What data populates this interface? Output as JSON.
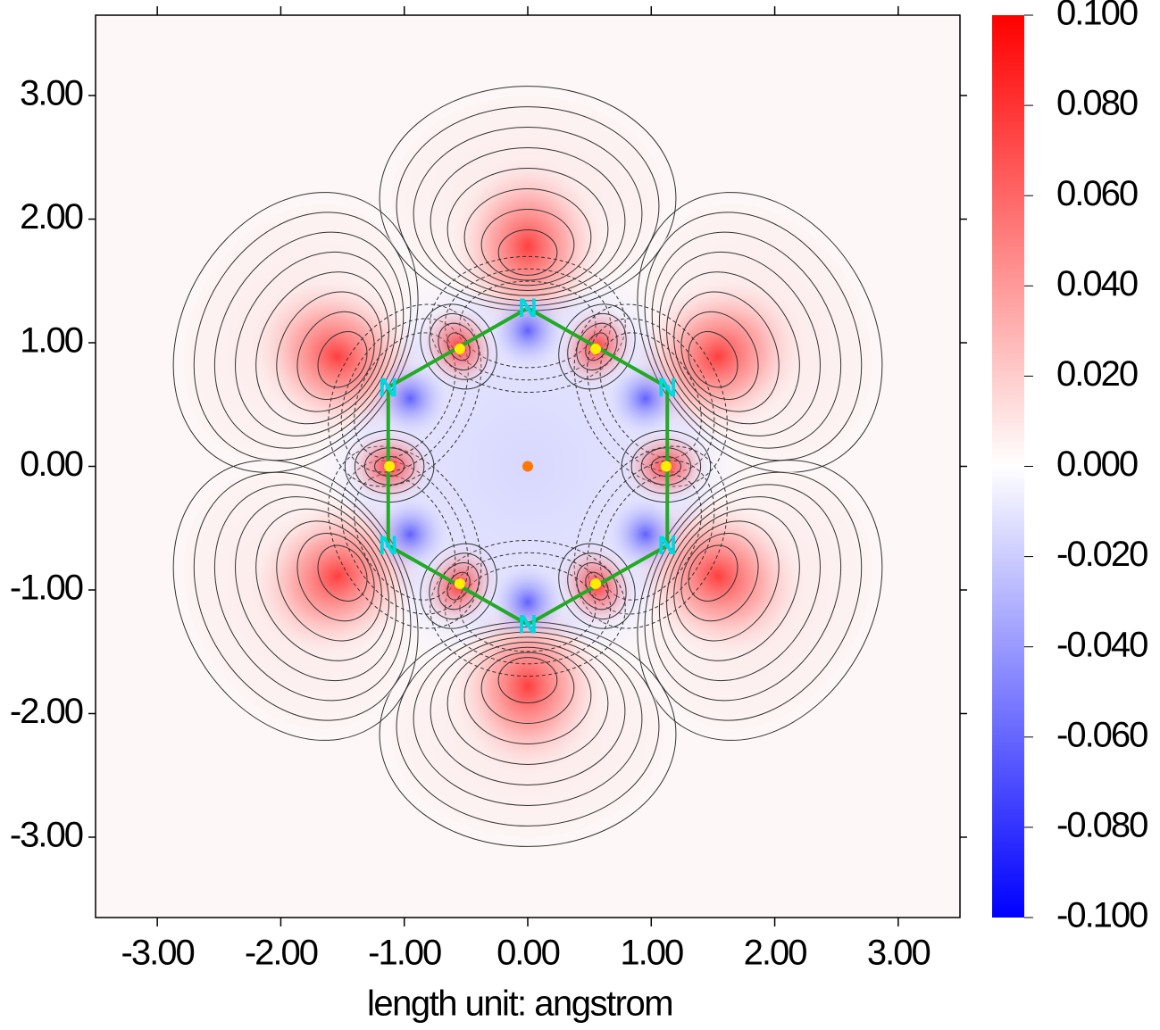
{
  "chart_data": {
    "type": "contour",
    "xlabel": "length unit: angstrom",
    "xlim": [
      -3.5,
      3.5
    ],
    "ylim": [
      -3.65,
      3.65
    ],
    "xticks": [
      {
        "value": -3,
        "label": "-3.00"
      },
      {
        "value": -2,
        "label": "-2.00"
      },
      {
        "value": -1,
        "label": "-1.00"
      },
      {
        "value": 0,
        "label": "0.00"
      },
      {
        "value": 1,
        "label": "1.00"
      },
      {
        "value": 2,
        "label": "2.00"
      },
      {
        "value": 3,
        "label": "3.00"
      }
    ],
    "yticks": [
      {
        "value": 3,
        "label": "3.00"
      },
      {
        "value": 2,
        "label": "2.00"
      },
      {
        "value": 1,
        "label": "1.00"
      },
      {
        "value": 0,
        "label": "0.00"
      },
      {
        "value": -1,
        "label": "-1.00"
      },
      {
        "value": -2,
        "label": "-2.00"
      },
      {
        "value": -3,
        "label": "-3.00"
      }
    ],
    "colorbar": {
      "lim": [
        -0.1,
        0.1
      ],
      "colors": [
        "#0000ff",
        "#ffffff",
        "#ff0000"
      ],
      "ticks": [
        {
          "value": 0.1,
          "label": "0.100"
        },
        {
          "value": 0.08,
          "label": "0.080"
        },
        {
          "value": 0.06,
          "label": "0.060"
        },
        {
          "value": 0.04,
          "label": "0.040"
        },
        {
          "value": 0.02,
          "label": "0.020"
        },
        {
          "value": 0,
          "label": "0.000"
        },
        {
          "value": -0.02,
          "label": "-0.020"
        },
        {
          "value": -0.04,
          "label": "-0.040"
        },
        {
          "value": -0.06,
          "label": "-0.060"
        },
        {
          "value": -0.08,
          "label": "-0.080"
        },
        {
          "value": -0.1,
          "label": "-0.100"
        }
      ]
    },
    "atoms": [
      {
        "label": "N",
        "x": 0,
        "y": 1.28
      },
      {
        "label": "N",
        "x": 1.13,
        "y": 0.64
      },
      {
        "label": "N",
        "x": 1.13,
        "y": -0.64
      },
      {
        "label": "N",
        "x": 0,
        "y": -1.28
      },
      {
        "label": "N",
        "x": -1.13,
        "y": -0.64
      },
      {
        "label": "N",
        "x": -1.13,
        "y": 0.64
      }
    ],
    "bond_color": "#22aa22",
    "atom_label_color": "#00d8e0",
    "critical_points": [
      {
        "x": 0.55,
        "y": 0.95,
        "color": "#ffee00"
      },
      {
        "x": 1.12,
        "y": 0,
        "color": "#ffee00"
      },
      {
        "x": 0.55,
        "y": -0.95,
        "color": "#ffee00"
      },
      {
        "x": -0.55,
        "y": -0.95,
        "color": "#ffee00"
      },
      {
        "x": -1.12,
        "y": 0,
        "color": "#ffee00"
      },
      {
        "x": -0.55,
        "y": 0.95,
        "color": "#ffee00"
      },
      {
        "x": 0,
        "y": 0,
        "color": "#ff7700"
      }
    ]
  }
}
